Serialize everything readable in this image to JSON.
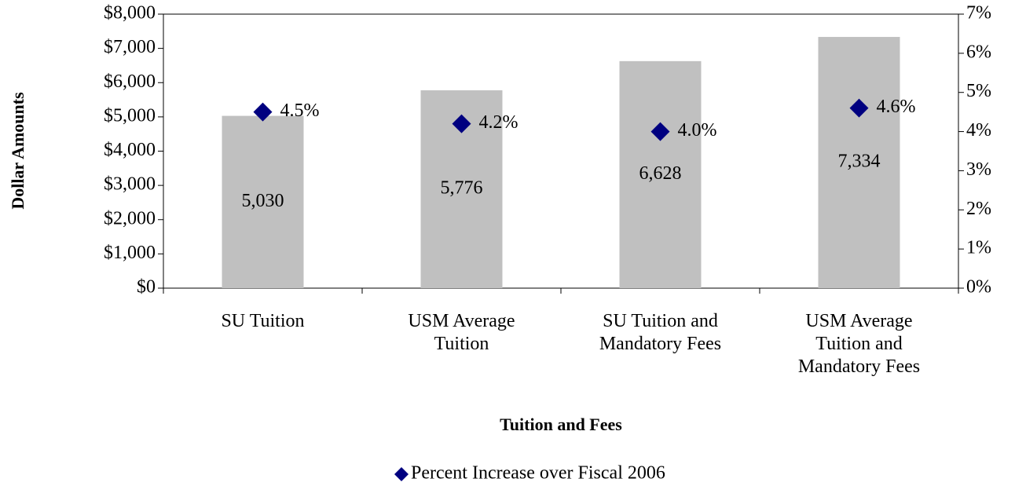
{
  "chart_data": {
    "type": "bar",
    "x_label": "Tuition and Fees",
    "y_label": "Dollar Amounts",
    "categories": [
      "SU Tuition",
      "USM Average Tuition",
      "SU Tuition and Mandatory Fees",
      "USM Average Tuition and Mandatory Fees"
    ],
    "series": [
      {
        "type": "bar",
        "color": "#c0c0c0",
        "values": [
          5030,
          5776,
          6628,
          7334
        ],
        "value_labels": [
          "5,030",
          "5,776",
          "6,628",
          "7,334"
        ]
      },
      {
        "type": "scatter",
        "name": "Percent Increase over Fiscal 2006",
        "color": "#000080",
        "axis": "y2",
        "values": [
          4.5,
          4.2,
          4.0,
          4.6
        ],
        "value_labels": [
          "4.5%",
          "4.2%",
          "4.0%",
          "4.6%"
        ]
      }
    ],
    "ylim": [
      0,
      8000
    ],
    "yticks": [
      {
        "value": 0,
        "label": "$0"
      },
      {
        "value": 1000,
        "label": "$1,000"
      },
      {
        "value": 2000,
        "label": "$2,000"
      },
      {
        "value": 3000,
        "label": "$3,000"
      },
      {
        "value": 4000,
        "label": "$4,000"
      },
      {
        "value": 5000,
        "label": "$5,000"
      },
      {
        "value": 6000,
        "label": "$6,000"
      },
      {
        "value": 7000,
        "label": "$7,000"
      },
      {
        "value": 8000,
        "label": "$8,000"
      }
    ],
    "y2lim": [
      0,
      7
    ],
    "y2ticks": [
      {
        "value": 0,
        "label": "0%"
      },
      {
        "value": 1,
        "label": "1%"
      },
      {
        "value": 2,
        "label": "2%"
      },
      {
        "value": 3,
        "label": "3%"
      },
      {
        "value": 4,
        "label": "4%"
      },
      {
        "value": 5,
        "label": "5%"
      },
      {
        "value": 6,
        "label": "6%"
      },
      {
        "value": 7,
        "label": "7%"
      }
    ],
    "legend": "bottom"
  }
}
